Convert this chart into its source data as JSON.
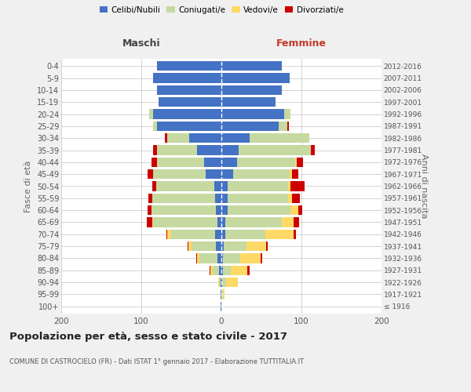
{
  "age_groups": [
    "100+",
    "95-99",
    "90-94",
    "85-89",
    "80-84",
    "75-79",
    "70-74",
    "65-69",
    "60-64",
    "55-59",
    "50-54",
    "45-49",
    "40-44",
    "35-39",
    "30-34",
    "25-29",
    "20-24",
    "15-19",
    "10-14",
    "5-9",
    "0-4"
  ],
  "birth_years": [
    "≤ 1916",
    "1917-1921",
    "1922-1926",
    "1927-1931",
    "1932-1936",
    "1937-1941",
    "1942-1946",
    "1947-1951",
    "1952-1956",
    "1957-1961",
    "1962-1966",
    "1967-1971",
    "1972-1976",
    "1977-1981",
    "1982-1986",
    "1987-1991",
    "1992-1996",
    "1997-2001",
    "2002-2006",
    "2007-2011",
    "2012-2016"
  ],
  "males": {
    "celibe": [
      1,
      1,
      1,
      3,
      5,
      7,
      8,
      5,
      7,
      8,
      9,
      20,
      22,
      30,
      40,
      80,
      85,
      78,
      80,
      85,
      80
    ],
    "coniugato": [
      0,
      0,
      2,
      8,
      22,
      30,
      55,
      80,
      80,
      78,
      72,
      65,
      58,
      50,
      28,
      5,
      5,
      0,
      0,
      0,
      0
    ],
    "vedovo": [
      0,
      0,
      1,
      3,
      3,
      4,
      5,
      1,
      0,
      0,
      0,
      0,
      0,
      0,
      0,
      0,
      0,
      0,
      0,
      0,
      0
    ],
    "divorziato": [
      0,
      0,
      0,
      1,
      1,
      1,
      1,
      7,
      5,
      5,
      5,
      7,
      7,
      5,
      3,
      0,
      0,
      0,
      0,
      0,
      0
    ]
  },
  "females": {
    "nubile": [
      0,
      0,
      1,
      2,
      2,
      3,
      5,
      5,
      8,
      8,
      8,
      15,
      20,
      22,
      35,
      72,
      78,
      68,
      75,
      85,
      75
    ],
    "coniugata": [
      0,
      2,
      5,
      10,
      22,
      28,
      50,
      70,
      78,
      75,
      75,
      70,
      72,
      90,
      75,
      10,
      8,
      0,
      0,
      0,
      0
    ],
    "vedova": [
      0,
      2,
      15,
      20,
      25,
      25,
      35,
      15,
      10,
      5,
      3,
      3,
      2,
      0,
      0,
      0,
      0,
      0,
      0,
      0,
      0
    ],
    "divorziata": [
      0,
      0,
      0,
      3,
      2,
      2,
      3,
      7,
      5,
      10,
      18,
      8,
      8,
      5,
      0,
      2,
      0,
      0,
      0,
      0,
      0
    ]
  },
  "colors": {
    "celibe": "#4472c4",
    "coniugato": "#c5d9a0",
    "vedovo": "#ffd966",
    "divorziato": "#cc0000"
  },
  "title": "Popolazione per età, sesso e stato civile - 2017",
  "subtitle": "COMUNE DI CASTROCIELO (FR) - Dati ISTAT 1° gennaio 2017 - Elaborazione TUTTITALIA.IT",
  "xlabel_left": "Maschi",
  "xlabel_right": "Femmine",
  "ylabel_left": "Fasce di età",
  "ylabel_right": "Anni di nascita",
  "xlim": 200,
  "bg_color": "#f0f0f0",
  "plot_bg": "#ffffff",
  "grid_color": "#cccccc"
}
